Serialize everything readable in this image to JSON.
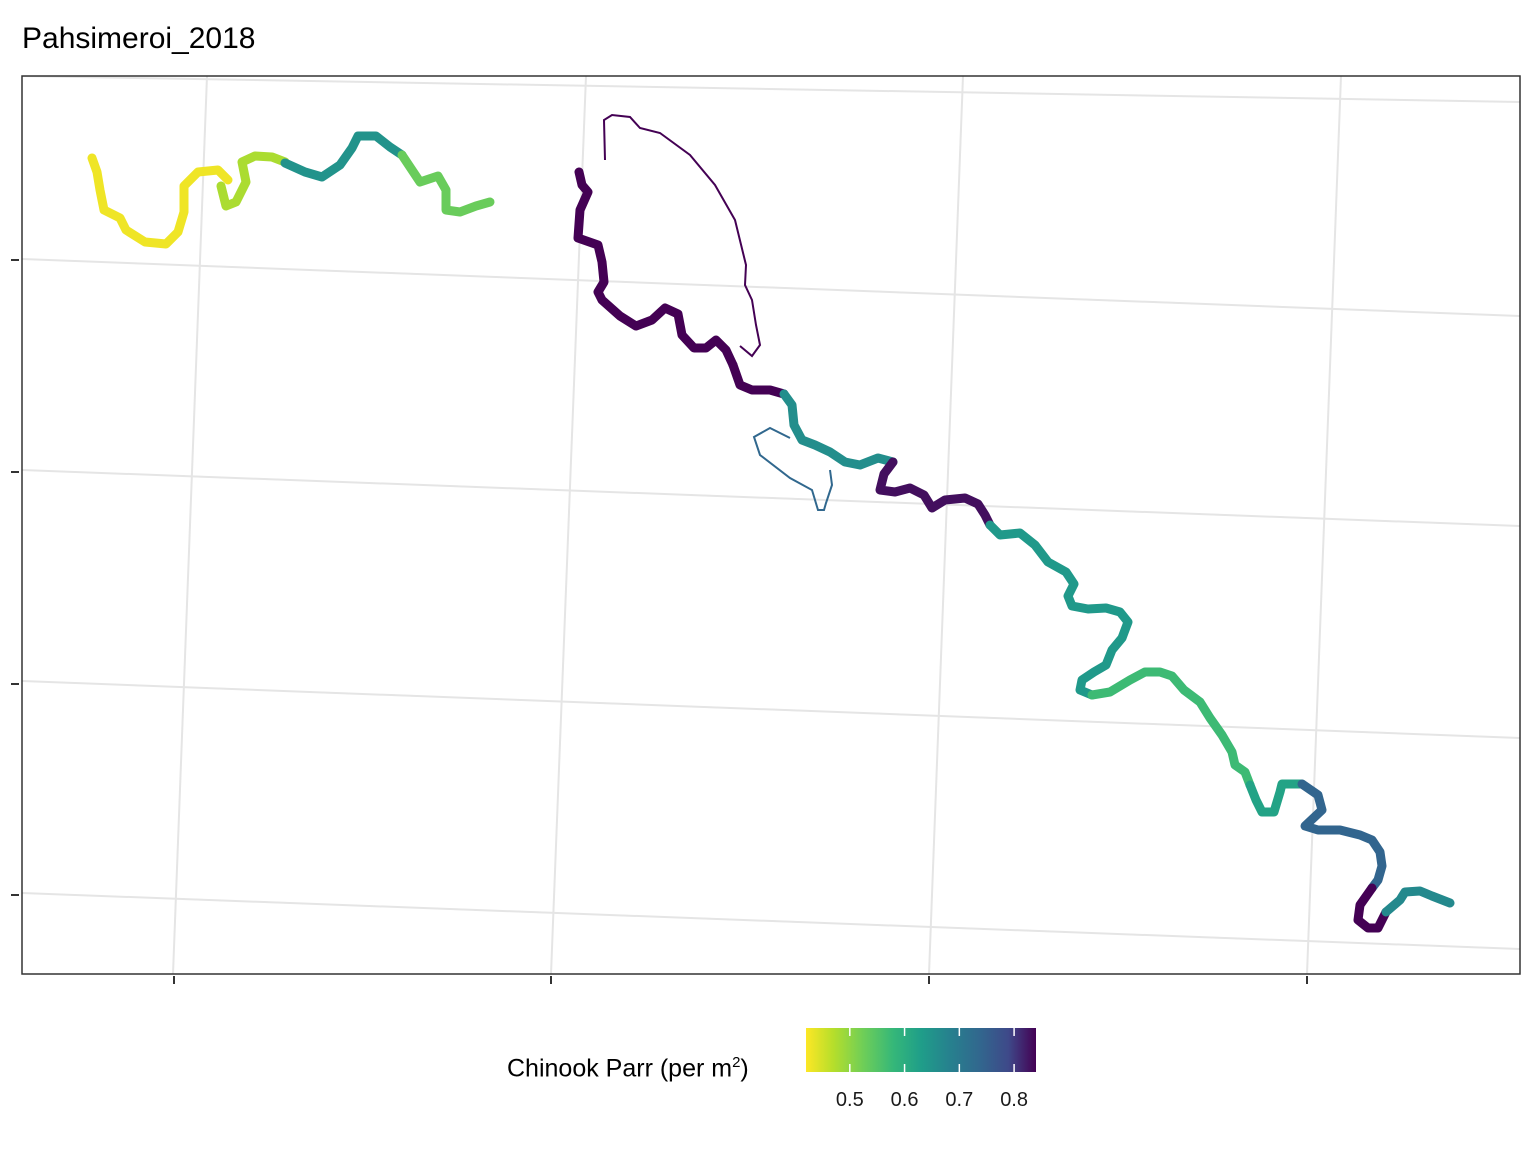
{
  "title": "Pahsimeroi_2018",
  "legend": {
    "title_main": "Chinook Parr (per m",
    "title_sup": "2",
    "title_end": ")",
    "ticks": [
      "0.5",
      "0.6",
      "0.7",
      "0.8"
    ],
    "tick_values": [
      0.5,
      0.6,
      0.7,
      0.8
    ],
    "range": [
      0.42,
      0.84
    ],
    "palette": "viridis (reversed: yellow = low, dark purple = high)"
  },
  "map": {
    "axis_labels_visible": false,
    "grid": true,
    "grid_color": "#e5e5e5",
    "panel_border_color": "#333333",
    "reaches": [
      {
        "id": "r1",
        "value": 0.43
      },
      {
        "id": "r2",
        "value": 0.48
      },
      {
        "id": "r3",
        "value": 0.65
      },
      {
        "id": "r4",
        "value": 0.53
      },
      {
        "id": "r5",
        "value": 0.84
      },
      {
        "id": "r6",
        "value": 0.84
      },
      {
        "id": "r7",
        "value": 0.66
      },
      {
        "id": "r8",
        "value": 0.83
      },
      {
        "id": "r9",
        "value": 0.64
      },
      {
        "id": "r10",
        "value": 0.57
      },
      {
        "id": "r11",
        "value": 0.62
      },
      {
        "id": "r12",
        "value": 0.74
      },
      {
        "id": "r13",
        "value": 0.84
      },
      {
        "id": "r14",
        "value": 0.67
      }
    ]
  }
}
